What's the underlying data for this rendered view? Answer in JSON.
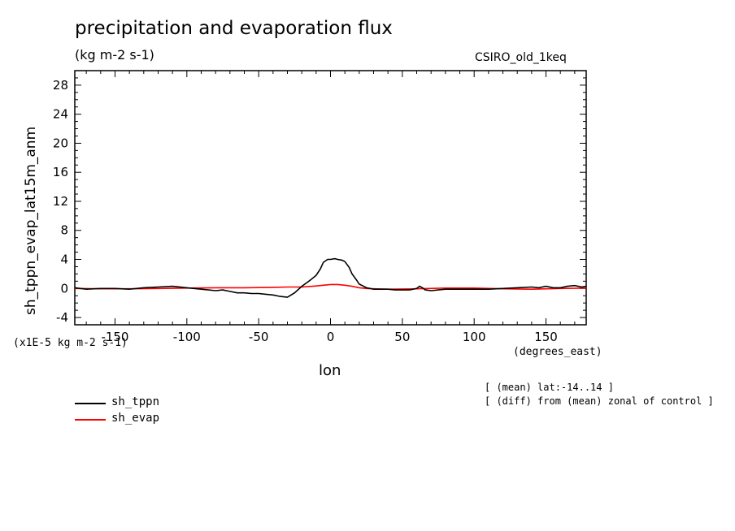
{
  "chart_data": {
    "type": "line",
    "title": "precipitation and evaporation flux",
    "subtitle": "(kg m-2 s-1)",
    "model_label": "CSIRO_old_1keq",
    "xlabel": "lon",
    "xunits": "(degrees_east)",
    "ylabel": "sh_tppn_evap_lat15m_anm",
    "scale_note": "(x1E-5 kg m-2 s-1)",
    "notes": [
      "[ (mean) lat:-14..14 ]",
      "[ (diff) from (mean) zonal of control ]"
    ],
    "xlim": [
      -178,
      178
    ],
    "ylim": [
      -5,
      30
    ],
    "xticks": [
      -150,
      -100,
      -50,
      0,
      50,
      100,
      150
    ],
    "xtick_labels": [
      "-150",
      "-100",
      "-50",
      "0",
      "50",
      "100",
      "150"
    ],
    "yticks": [
      -4,
      0,
      4,
      8,
      12,
      16,
      20,
      24,
      28
    ],
    "ytick_labels": [
      "-4",
      "0",
      "4",
      "8",
      "12",
      "16",
      "20",
      "24",
      "28"
    ],
    "grid": false,
    "legend_position": "bottom-left",
    "series": [
      {
        "name": "sh_tppn",
        "color": "#000000",
        "x": [
          -178,
          -170,
          -160,
          -150,
          -140,
          -130,
          -120,
          -110,
          -100,
          -90,
          -80,
          -75,
          -70,
          -65,
          -60,
          -55,
          -50,
          -45,
          -40,
          -35,
          -30,
          -25,
          -20,
          -15,
          -10,
          -7,
          -5,
          -2,
          0,
          3,
          5,
          8,
          10,
          13,
          15,
          18,
          20,
          25,
          30,
          35,
          40,
          45,
          50,
          55,
          60,
          62,
          64,
          66,
          70,
          75,
          80,
          90,
          100,
          110,
          120,
          130,
          140,
          145,
          150,
          155,
          160,
          165,
          170,
          175,
          178
        ],
        "y": [
          0.1,
          -0.1,
          0.0,
          0.0,
          -0.1,
          0.1,
          0.2,
          0.3,
          0.1,
          -0.1,
          -0.3,
          -0.2,
          -0.4,
          -0.6,
          -0.6,
          -0.7,
          -0.7,
          -0.8,
          -0.9,
          -1.1,
          -1.2,
          -0.6,
          0.3,
          1.0,
          1.8,
          2.7,
          3.6,
          4.0,
          4.0,
          4.1,
          4.0,
          3.9,
          3.7,
          2.9,
          2.0,
          1.2,
          0.6,
          0.1,
          -0.1,
          -0.1,
          -0.1,
          -0.2,
          -0.2,
          -0.2,
          0.0,
          0.3,
          0.1,
          -0.2,
          -0.3,
          -0.2,
          -0.1,
          -0.1,
          -0.1,
          -0.1,
          0.0,
          0.1,
          0.2,
          0.1,
          0.3,
          0.1,
          0.1,
          0.3,
          0.4,
          0.2,
          0.3
        ]
      },
      {
        "name": "sh_evap",
        "color": "#ff0000",
        "x": [
          -178,
          -160,
          -140,
          -120,
          -100,
          -80,
          -60,
          -40,
          -30,
          -20,
          -10,
          0,
          5,
          10,
          15,
          20,
          25,
          30,
          40,
          60,
          80,
          100,
          120,
          140,
          160,
          178
        ],
        "y": [
          0.0,
          -0.05,
          -0.05,
          0.0,
          0.05,
          0.1,
          0.1,
          0.15,
          0.2,
          0.2,
          0.35,
          0.55,
          0.55,
          0.45,
          0.3,
          0.1,
          0.0,
          -0.05,
          -0.1,
          -0.05,
          0.05,
          0.05,
          -0.05,
          -0.1,
          0.0,
          0.05
        ]
      }
    ]
  }
}
